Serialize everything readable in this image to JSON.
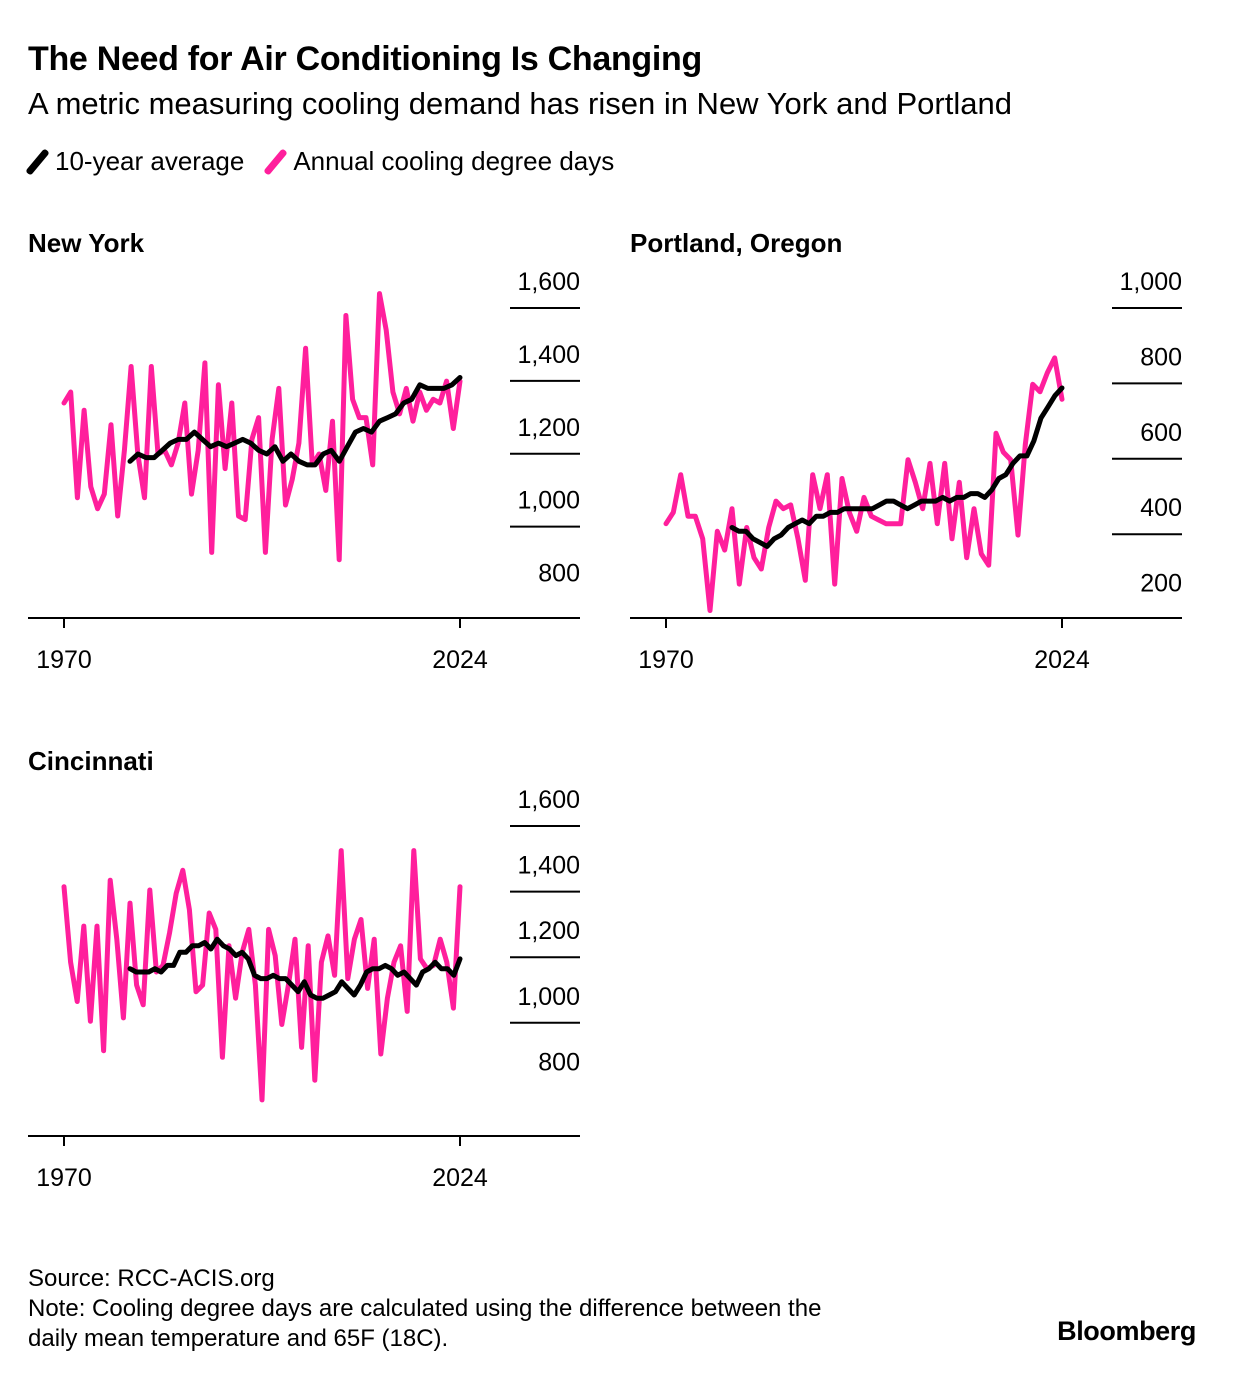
{
  "title": "The Need for Air Conditioning Is Changing",
  "subtitle": "A metric measuring cooling demand has risen in New York and Portland",
  "legend": {
    "avg_label": "10-year average",
    "annual_label": "Annual cooling degree days"
  },
  "colors": {
    "annual": "#ff1f9c",
    "average": "#000000",
    "axis": "#000000"
  },
  "source": "Source: RCC-ACIS.org",
  "note_line1": "Note: Cooling degree days are calculated using the difference between the",
  "note_line2": "daily mean temperature and 65F (18C).",
  "logo": "Bloomberg",
  "chart_data": [
    {
      "type": "line",
      "title": "New York",
      "xlim": [
        1970,
        2024
      ],
      "x_tick_labels": [
        "1970",
        "2024"
      ],
      "ylim": [
        700,
        1600
      ],
      "y_ticks": [
        800,
        1000,
        1200,
        1400,
        1600
      ],
      "y_tick_labels": [
        "800",
        "1,000",
        "1,200",
        "1,400",
        "1,600"
      ],
      "series": [
        {
          "name": "Annual cooling degree days",
          "start_year": 1970,
          "values": [
            1290,
            1320,
            1030,
            1270,
            1060,
            1000,
            1040,
            1230,
            980,
            1160,
            1390,
            1150,
            1030,
            1390,
            1150,
            1160,
            1120,
            1180,
            1290,
            1040,
            1160,
            1400,
            880,
            1340,
            1110,
            1290,
            980,
            970,
            1190,
            1250,
            880,
            1190,
            1330,
            1010,
            1080,
            1180,
            1440,
            1120,
            1150,
            1050,
            1240,
            860,
            1530,
            1300,
            1250,
            1250,
            1120,
            1590,
            1490,
            1320,
            1260,
            1330,
            1240,
            1320,
            1270,
            1300,
            1290,
            1350,
            1220,
            1350
          ]
        },
        {
          "name": "10-year average",
          "start_year": 1979,
          "values": [
            1130,
            1150,
            1140,
            1140,
            1160,
            1180,
            1190,
            1190,
            1210,
            1190,
            1170,
            1180,
            1170,
            1180,
            1190,
            1180,
            1160,
            1150,
            1170,
            1130,
            1150,
            1130,
            1120,
            1120,
            1150,
            1160,
            1130,
            1170,
            1210,
            1220,
            1210,
            1240,
            1250,
            1260,
            1290,
            1300,
            1340,
            1330,
            1330,
            1330,
            1340,
            1360
          ]
        }
      ]
    },
    {
      "type": "line",
      "title": "Portland, Oregon",
      "xlim": [
        1970,
        2024
      ],
      "x_tick_labels": [
        "1970",
        "2024"
      ],
      "ylim": [
        130,
        1000
      ],
      "y_ticks": [
        200,
        400,
        600,
        800,
        1000
      ],
      "y_tick_labels": [
        "200",
        "400",
        "600",
        "800",
        "1,000"
      ],
      "series": [
        {
          "name": "Annual cooling degree days",
          "start_year": 1970,
          "values": [
            380,
            410,
            510,
            400,
            400,
            340,
            150,
            360,
            310,
            420,
            220,
            370,
            290,
            260,
            370,
            440,
            420,
            430,
            340,
            230,
            510,
            420,
            510,
            220,
            500,
            410,
            360,
            450,
            400,
            390,
            380,
            380,
            380,
            550,
            490,
            420,
            540,
            380,
            540,
            340,
            490,
            290,
            420,
            300,
            270,
            620,
            570,
            550,
            350,
            590,
            750,
            730,
            780,
            820,
            710
          ]
        },
        {
          "name": "10-year average",
          "start_year": 1979,
          "values": [
            370,
            360,
            360,
            340,
            330,
            320,
            340,
            350,
            370,
            380,
            390,
            380,
            400,
            400,
            410,
            410,
            420,
            420,
            420,
            420,
            420,
            430,
            440,
            440,
            430,
            420,
            430,
            440,
            440,
            440,
            450,
            440,
            450,
            450,
            460,
            460,
            450,
            470,
            500,
            510,
            540,
            560,
            560,
            600,
            660,
            690,
            720,
            740
          ]
        }
      ]
    },
    {
      "type": "line",
      "title": "Cincinnati",
      "xlim": [
        1970,
        2024
      ],
      "x_tick_labels": [
        "1970",
        "2024"
      ],
      "ylim": [
        600,
        1600
      ],
      "y_ticks": [
        800,
        1000,
        1200,
        1400,
        1600
      ],
      "y_tick_labels": [
        "800",
        "1,000",
        "1,200",
        "1,400",
        "1,600"
      ],
      "series": [
        {
          "name": "Annual cooling degree days",
          "start_year": 1970,
          "values": [
            1360,
            1130,
            1010,
            1240,
            950,
            1240,
            860,
            1380,
            1200,
            960,
            1310,
            1060,
            1000,
            1350,
            1100,
            1120,
            1220,
            1340,
            1410,
            1290,
            1040,
            1060,
            1280,
            1230,
            840,
            1180,
            1020,
            1160,
            1230,
            1060,
            710,
            1230,
            1150,
            940,
            1060,
            1200,
            870,
            1180,
            770,
            1130,
            1210,
            1090,
            1470,
            1080,
            1200,
            1260,
            1050,
            1200,
            850,
            1020,
            1130,
            1180,
            980,
            1470,
            1140,
            1110,
            1120,
            1200,
            1130,
            990,
            1360
          ]
        },
        {
          "name": "10-year average",
          "start_year": 1979,
          "values": [
            1110,
            1100,
            1100,
            1100,
            1110,
            1100,
            1120,
            1120,
            1160,
            1160,
            1180,
            1180,
            1190,
            1170,
            1200,
            1180,
            1170,
            1150,
            1160,
            1140,
            1090,
            1080,
            1080,
            1090,
            1080,
            1080,
            1060,
            1040,
            1070,
            1030,
            1020,
            1020,
            1030,
            1040,
            1070,
            1050,
            1030,
            1060,
            1100,
            1110,
            1110,
            1120,
            1110,
            1090,
            1100,
            1080,
            1060,
            1100,
            1110,
            1130,
            1110,
            1110,
            1090,
            1140
          ]
        }
      ]
    }
  ]
}
